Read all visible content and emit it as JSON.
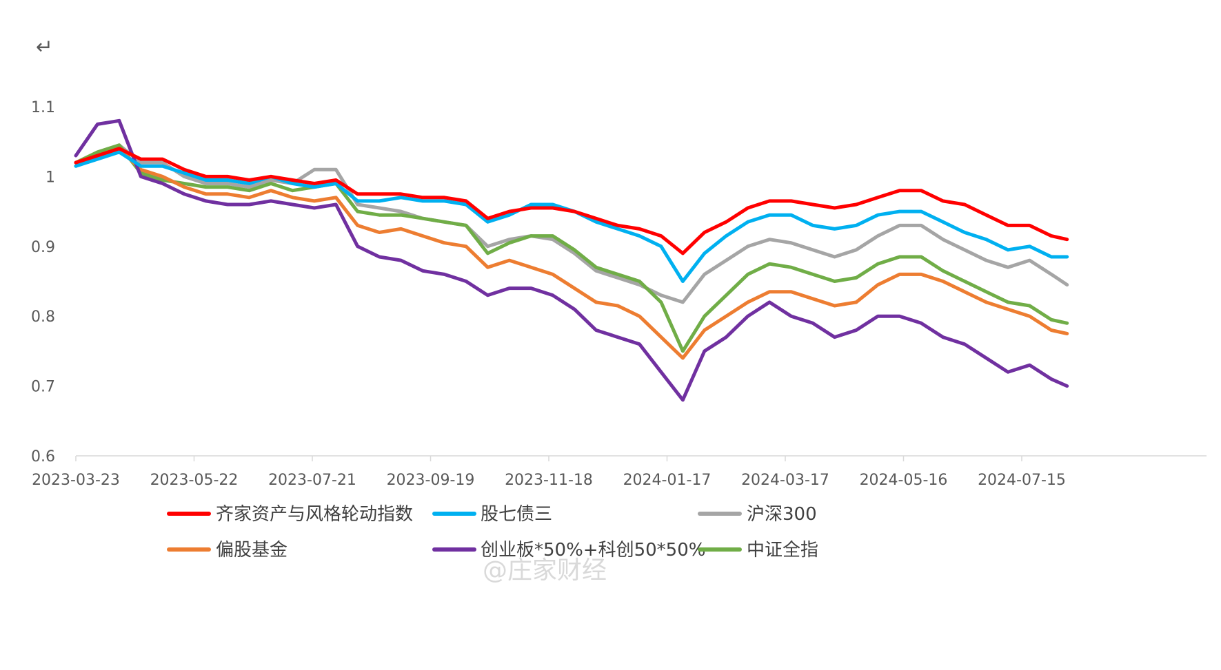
{
  "corner_glyph": "↵",
  "watermark": "@庄家财经",
  "chart_data": {
    "type": "line",
    "title": "",
    "xlabel": "",
    "ylabel": "",
    "ylim": [
      0.6,
      1.1
    ],
    "yticks": [
      "0.6",
      "0.7",
      "0.8",
      "0.9",
      "1",
      "1.1"
    ],
    "xlim": [
      "2023-03-23",
      "2024-08-07"
    ],
    "xticks": [
      "2023-03-23",
      "2023-05-22",
      "2023-07-21",
      "2023-09-19",
      "2023-11-18",
      "2024-01-17",
      "2024-03-17",
      "2024-05-16",
      "2024-07-15"
    ],
    "grid": false,
    "legend_position": "bottom",
    "x": [
      "2023-03-23",
      "2023-04-03",
      "2023-04-14",
      "2023-04-25",
      "2023-05-06",
      "2023-05-17",
      "2023-05-28",
      "2023-06-08",
      "2023-06-19",
      "2023-06-30",
      "2023-07-11",
      "2023-07-22",
      "2023-08-02",
      "2023-08-13",
      "2023-08-24",
      "2023-09-04",
      "2023-09-15",
      "2023-09-26",
      "2023-10-07",
      "2023-10-18",
      "2023-10-29",
      "2023-11-09",
      "2023-11-20",
      "2023-12-01",
      "2023-12-12",
      "2023-12-23",
      "2024-01-03",
      "2024-01-14",
      "2024-01-25",
      "2024-02-05",
      "2024-02-16",
      "2024-02-27",
      "2024-03-09",
      "2024-03-20",
      "2024-03-31",
      "2024-04-11",
      "2024-04-22",
      "2024-05-03",
      "2024-05-14",
      "2024-05-25",
      "2024-06-05",
      "2024-06-16",
      "2024-06-27",
      "2024-07-08",
      "2024-07-19",
      "2024-07-30",
      "2024-08-07"
    ],
    "series": [
      {
        "name": "齐家资产与风格轮动指数",
        "color": "#ff0000",
        "values": [
          1.02,
          1.03,
          1.04,
          1.025,
          1.025,
          1.01,
          1.0,
          1.0,
          0.995,
          1.0,
          0.995,
          0.99,
          0.995,
          0.975,
          0.975,
          0.975,
          0.97,
          0.97,
          0.965,
          0.94,
          0.95,
          0.955,
          0.955,
          0.95,
          0.94,
          0.93,
          0.925,
          0.915,
          0.89,
          0.92,
          0.935,
          0.955,
          0.965,
          0.965,
          0.96,
          0.955,
          0.96,
          0.97,
          0.98,
          0.98,
          0.965,
          0.96,
          0.945,
          0.93,
          0.93,
          0.915,
          0.91
        ]
      },
      {
        "name": "股七债三",
        "color": "#00b0f0",
        "values": [
          1.015,
          1.025,
          1.035,
          1.015,
          1.015,
          1.005,
          0.995,
          0.995,
          0.99,
          1.0,
          0.99,
          0.985,
          0.99,
          0.965,
          0.965,
          0.97,
          0.965,
          0.965,
          0.96,
          0.935,
          0.945,
          0.96,
          0.96,
          0.95,
          0.935,
          0.925,
          0.915,
          0.9,
          0.85,
          0.89,
          0.915,
          0.935,
          0.945,
          0.945,
          0.93,
          0.925,
          0.93,
          0.945,
          0.95,
          0.95,
          0.935,
          0.92,
          0.91,
          0.895,
          0.9,
          0.885,
          0.885
        ]
      },
      {
        "name": "沪深300",
        "color": "#a5a5a5",
        "values": [
          1.015,
          1.03,
          1.045,
          1.02,
          1.02,
          1.0,
          0.99,
          0.99,
          0.985,
          0.995,
          0.99,
          1.01,
          1.01,
          0.96,
          0.955,
          0.95,
          0.94,
          0.935,
          0.93,
          0.9,
          0.91,
          0.915,
          0.91,
          0.89,
          0.865,
          0.855,
          0.845,
          0.83,
          0.82,
          0.86,
          0.88,
          0.9,
          0.91,
          0.905,
          0.895,
          0.885,
          0.895,
          0.915,
          0.93,
          0.93,
          0.91,
          0.895,
          0.88,
          0.87,
          0.88,
          0.86,
          0.845
        ]
      },
      {
        "name": "偏股基金",
        "color": "#ed7d31",
        "values": [
          1.02,
          1.03,
          1.04,
          1.01,
          1.0,
          0.985,
          0.975,
          0.975,
          0.97,
          0.98,
          0.97,
          0.965,
          0.97,
          0.93,
          0.92,
          0.925,
          0.915,
          0.905,
          0.9,
          0.87,
          0.88,
          0.87,
          0.86,
          0.84,
          0.82,
          0.815,
          0.8,
          0.77,
          0.74,
          0.78,
          0.8,
          0.82,
          0.835,
          0.835,
          0.825,
          0.815,
          0.82,
          0.845,
          0.86,
          0.86,
          0.85,
          0.835,
          0.82,
          0.81,
          0.8,
          0.78,
          0.775
        ]
      },
      {
        "name": "创业板*50%+科创50*50%",
        "color": "#7030a0",
        "values": [
          1.03,
          1.075,
          1.08,
          1.0,
          0.99,
          0.975,
          0.965,
          0.96,
          0.96,
          0.965,
          0.96,
          0.955,
          0.96,
          0.9,
          0.885,
          0.88,
          0.865,
          0.86,
          0.85,
          0.83,
          0.84,
          0.84,
          0.83,
          0.81,
          0.78,
          0.77,
          0.76,
          0.72,
          0.68,
          0.75,
          0.77,
          0.8,
          0.82,
          0.8,
          0.79,
          0.77,
          0.78,
          0.8,
          0.8,
          0.79,
          0.77,
          0.76,
          0.74,
          0.72,
          0.73,
          0.71,
          0.7
        ]
      },
      {
        "name": "中证全指",
        "color": "#70ad47",
        "values": [
          1.02,
          1.035,
          1.045,
          1.005,
          0.995,
          0.99,
          0.985,
          0.985,
          0.98,
          0.99,
          0.98,
          0.985,
          0.99,
          0.95,
          0.945,
          0.945,
          0.94,
          0.935,
          0.93,
          0.89,
          0.905,
          0.915,
          0.915,
          0.895,
          0.87,
          0.86,
          0.85,
          0.82,
          0.75,
          0.8,
          0.83,
          0.86,
          0.875,
          0.87,
          0.86,
          0.85,
          0.855,
          0.875,
          0.885,
          0.885,
          0.865,
          0.85,
          0.835,
          0.82,
          0.815,
          0.795,
          0.79
        ]
      }
    ]
  }
}
